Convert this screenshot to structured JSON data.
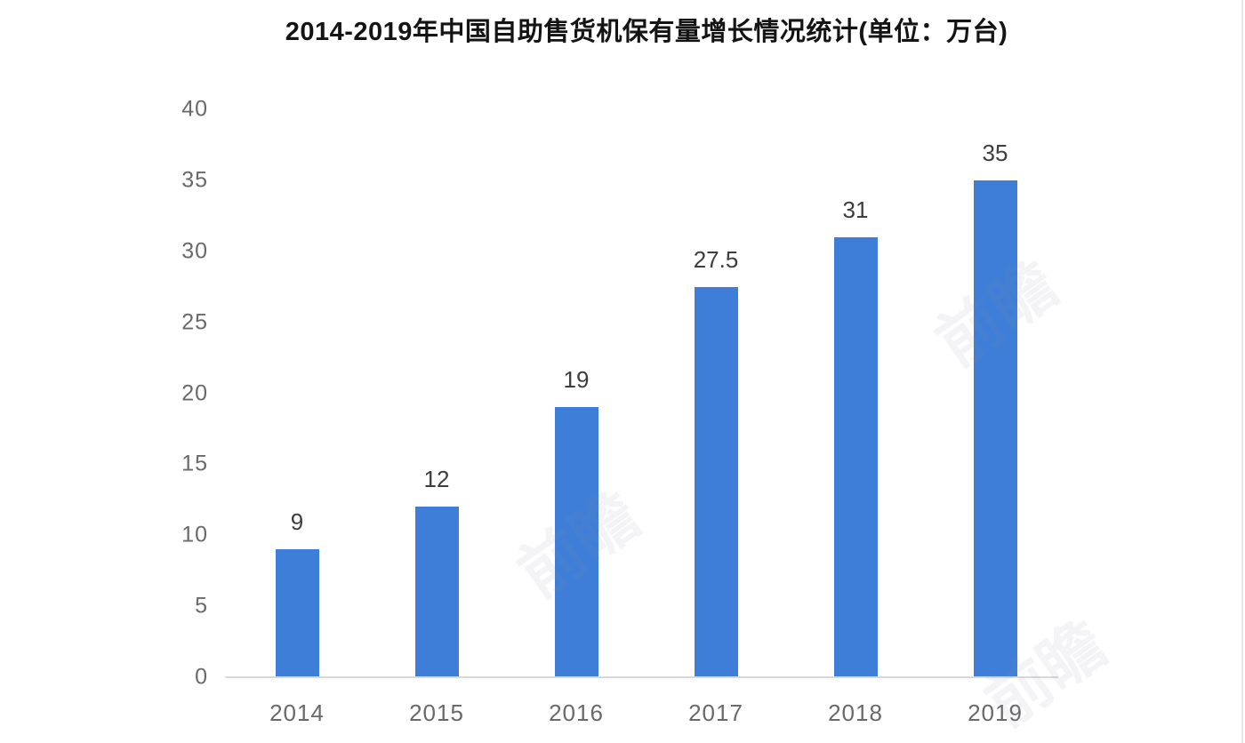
{
  "chart_data": {
    "type": "bar",
    "title": "2014-2019年中国自助售货机保有量增长情况统计(单位：万台)",
    "categories": [
      "2014",
      "2015",
      "2016",
      "2017",
      "2018",
      "2019"
    ],
    "values": [
      9,
      12,
      19,
      27.5,
      31,
      35
    ],
    "value_labels": [
      "9",
      "12",
      "19",
      "27.5",
      "31",
      "35"
    ],
    "xlabel": "",
    "ylabel": "",
    "ylim": [
      0,
      40
    ],
    "yticks": [
      0,
      5,
      10,
      15,
      20,
      25,
      30,
      35,
      40
    ],
    "grid": false,
    "legend": null,
    "colors": {
      "bar": "#3e7ed8",
      "axis_line": "#d9d9d9",
      "tick_label": "#696969",
      "value_label": "#3d3d3d",
      "title": "#141414",
      "background": "#ffffff"
    }
  },
  "watermark": {
    "text": "前瞻",
    "color": "#8d93a1"
  }
}
